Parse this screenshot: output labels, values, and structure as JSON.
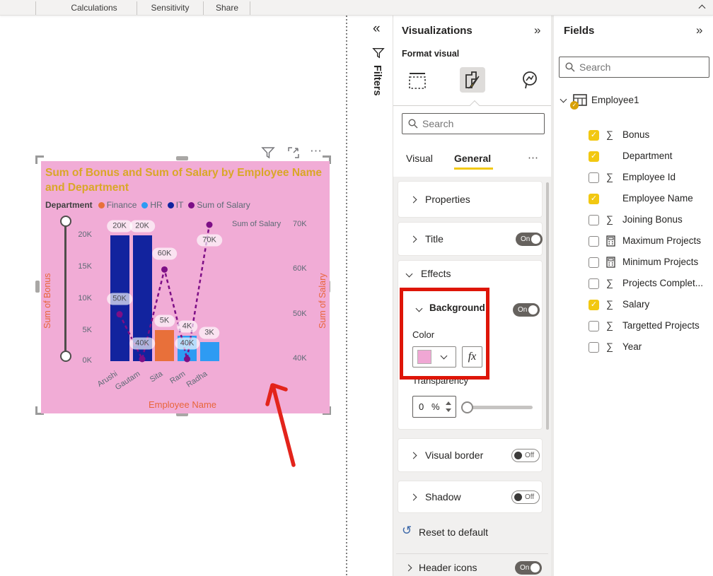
{
  "ribbon": {
    "tabs": [
      "Calculations",
      "Sensitivity",
      "Share"
    ],
    "collapse_icon": "chevron-up"
  },
  "canvas": {
    "visual": {
      "title": "Sum of Bonus and Sum of Salary by Employee Name and Department",
      "title_color": "#D9A727",
      "background": "#F1ACD6",
      "legend_title": "Department",
      "legend": [
        {
          "label": "Finance",
          "color": "#E8703A"
        },
        {
          "label": "HR",
          "color": "#2E9BF3"
        },
        {
          "label": "IT",
          "color": "#12239E"
        },
        {
          "label": "Sum of Salary",
          "color": "#7D0E86"
        }
      ],
      "secondary_axis_top_label": "Sum of Salary",
      "header_more_glyph": "⋯"
    }
  },
  "chart_data": {
    "type": "combo bar+line",
    "title": "Sum of Bonus and Sum of Salary by Employee Name and Department",
    "categories": [
      "Arushi",
      "Gautam",
      "Sita",
      "Ram",
      "Radha"
    ],
    "series": [
      {
        "name": "Sum of Bonus",
        "type": "bar",
        "values": [
          20000,
          20000,
          5000,
          4000,
          3000
        ],
        "labels": [
          "20K",
          "20K",
          "5K",
          "4K",
          "3K"
        ],
        "departments": [
          "IT",
          "IT",
          "Finance",
          "HR",
          "HR"
        ]
      },
      {
        "name": "Sum of Salary",
        "type": "line",
        "values": [
          50000,
          40000,
          60000,
          40000,
          70000
        ],
        "labels": [
          "50K",
          "40K",
          "60K",
          "40K",
          "70K"
        ],
        "label_side": [
          "above",
          "above",
          "above",
          "above",
          "below"
        ],
        "color": "#7D0E86"
      }
    ],
    "department_colors": {
      "Finance": "#E8703A",
      "HR": "#2E9BF3",
      "IT": "#12239E"
    },
    "y_left": {
      "title": "Sum of Bonus",
      "ticks": [
        "20K",
        "15K",
        "10K",
        "5K",
        "0K"
      ],
      "range": [
        0,
        20000
      ]
    },
    "y_right": {
      "title": "Sum of Salary",
      "ticks": [
        "70K",
        "60K",
        "50K",
        "40K"
      ],
      "range": [
        40000,
        70000
      ]
    },
    "x_title": "Employee Name",
    "legend_position": "top",
    "grid": false
  },
  "filters_bar": {
    "collapse_glyph": "«",
    "title": "Filters"
  },
  "viz_pane": {
    "title": "Visualizations",
    "collapse_glyph": "»",
    "subtitle": "Format visual",
    "search_placeholder": "Search",
    "tab_visual": "Visual",
    "tab_general": "General",
    "more_glyph": "⋯",
    "properties_label": "Properties",
    "title_section": {
      "label": "Title",
      "state": "On"
    },
    "effects_label": "Effects",
    "background_section": {
      "label": "Background",
      "state": "On",
      "color_label": "Color",
      "swatch_color": "#F0A7D4",
      "fx_label": "fx",
      "transparency_label": "Transparency",
      "transparency_value": "0",
      "unit": "%"
    },
    "visual_border": {
      "label": "Visual border",
      "state": "Off"
    },
    "shadow": {
      "label": "Shadow",
      "state": "Off"
    },
    "reset_label": "Reset to default",
    "header_icons": {
      "label": "Header icons",
      "state": "On"
    }
  },
  "fields_pane": {
    "title": "Fields",
    "collapse_glyph": "»",
    "search_placeholder": "Search",
    "table_name": "Employee1",
    "fields": [
      {
        "label": "Bonus",
        "checked": true,
        "icon": "sigma"
      },
      {
        "label": "Department",
        "checked": true,
        "icon": "none"
      },
      {
        "label": "Employee Id",
        "checked": false,
        "icon": "sigma"
      },
      {
        "label": "Employee Name",
        "checked": true,
        "icon": "none"
      },
      {
        "label": "Joining Bonus",
        "checked": false,
        "icon": "sigma"
      },
      {
        "label": "Maximum Projects",
        "checked": false,
        "icon": "calculator"
      },
      {
        "label": "Minimum Projects",
        "checked": false,
        "icon": "calculator"
      },
      {
        "label": "Projects Complet...",
        "checked": false,
        "icon": "sigma"
      },
      {
        "label": "Salary",
        "checked": true,
        "icon": "sigma"
      },
      {
        "label": "Targetted Projects",
        "checked": false,
        "icon": "sigma"
      },
      {
        "label": "Year",
        "checked": false,
        "icon": "sigma"
      }
    ]
  },
  "colors": {
    "accent_yellow": "#F2C811",
    "toggle_on_gray": "#66625E",
    "annotation_red": "#DE1507",
    "pink_background": "#F1ACD6"
  }
}
